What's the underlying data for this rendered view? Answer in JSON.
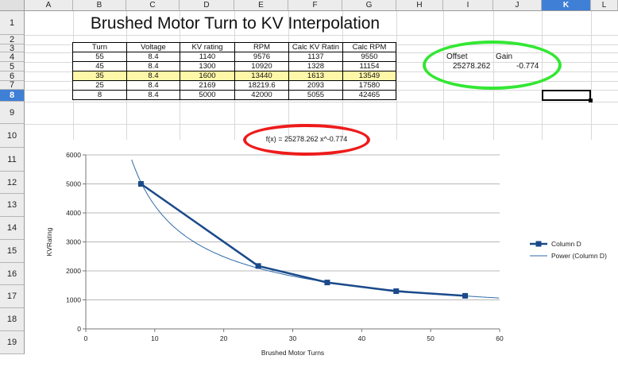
{
  "sheet": {
    "columns": [
      "A",
      "B",
      "C",
      "D",
      "E",
      "F",
      "G",
      "H",
      "I",
      "J",
      "K",
      "L"
    ],
    "rows": [
      "1",
      "2",
      "3",
      "4",
      "5",
      "6",
      "7",
      "8",
      "9",
      "10",
      "11",
      "12",
      "13",
      "14",
      "15",
      "16",
      "17",
      "18",
      "19"
    ],
    "active_column": "K",
    "active_row": "8"
  },
  "title": "Brushed Motor Turn to KV Interpolation",
  "table": {
    "headers": [
      "Turn",
      "Voltage",
      "KV rating",
      "RPM",
      "Calc KV Ratin",
      "Calc RPM"
    ],
    "rows": [
      [
        "55",
        "8.4",
        "1140",
        "9576",
        "1137",
        "9550"
      ],
      [
        "45",
        "8.4",
        "1300",
        "10920",
        "1328",
        "11154"
      ],
      [
        "35",
        "8.4",
        "1600",
        "13440",
        "1613",
        "13549"
      ],
      [
        "25",
        "8.4",
        "2169",
        "18219.6",
        "2093",
        "17580"
      ],
      [
        "8",
        "8.4",
        "5000",
        "42000",
        "5055",
        "42465"
      ]
    ],
    "highlight_color": "#fff7a8"
  },
  "fit": {
    "offset_label": "Offset",
    "gain_label": "Gain",
    "offset_value": "25278.262",
    "gain_value": "-0.774",
    "formula": "f(x) = 25278.262 x^-0.774"
  },
  "annotations": {
    "green_ellipse_color": "#33e733",
    "red_ellipse_color": "#ee1b1b"
  },
  "chart_data": {
    "type": "scatter",
    "xlabel": "Brushed Motor Turns",
    "ylabel": "KVRating",
    "xlim": [
      0,
      60
    ],
    "ylim": [
      0,
      6000
    ],
    "xticks": [
      "0",
      "10",
      "20",
      "30",
      "40",
      "50",
      "60"
    ],
    "yticks": [
      "0",
      "1000",
      "2000",
      "3000",
      "4000",
      "5000",
      "6000"
    ],
    "grid": true,
    "legend": "right",
    "series": [
      {
        "name": "Column D",
        "x": [
          8,
          25,
          35,
          45,
          55
        ],
        "y": [
          5000,
          2169,
          1600,
          1300,
          1140
        ],
        "color": "#1a4a8a",
        "marker": "square"
      },
      {
        "name": "Power (Column D)",
        "fit": {
          "a": 25278.262,
          "b": -0.774
        },
        "color": "#2f6aa8"
      }
    ]
  }
}
